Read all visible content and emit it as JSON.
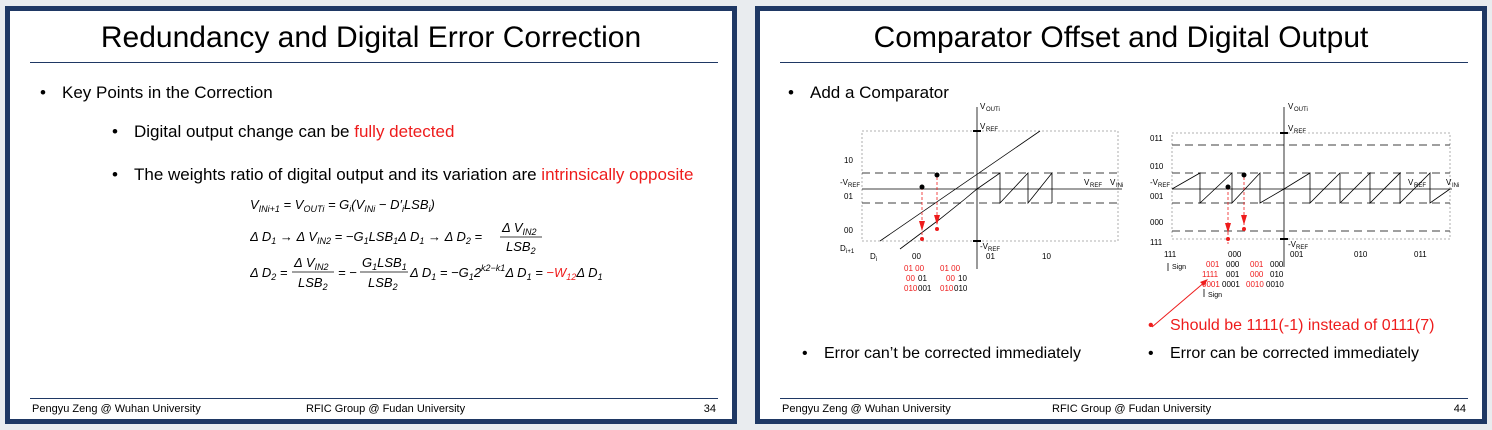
{
  "left": {
    "title": "Redundancy and Digital Error Correction",
    "bullet1": "Key Points in the Correction",
    "bullet2_plain": "Digital output change can be ",
    "bullet2_red": "fully detected",
    "bullet3_plain": "The weights ratio of digital output and its variation are ",
    "bullet3_red": "intrinsically opposite",
    "footer_left": "Pengyu Zeng @ Wuhan University",
    "footer_center": "RFIC Group @ Fudan University",
    "page_number": "34"
  },
  "right": {
    "title": "Comparator Offset and Digital Output",
    "bullet1": "Add a Comparator",
    "note_red": "Should be 1111(-1) instead of 0111(7)",
    "caption_left": "Error can’t be corrected immediately",
    "caption_right": "Error can be corrected immediately",
    "footer_left": "Pengyu Zeng @ Wuhan University",
    "footer_center": "RFIC Group @ Fudan University",
    "page_number": "44"
  },
  "plot1": {
    "vout_label": "OUTi",
    "vref_top": "REF",
    "vref_left": "-V",
    "vref_bottom": "-V",
    "vref_right": "V",
    "vin_label": "INi",
    "y_codes": [
      "10",
      "01",
      "00"
    ],
    "y_bottom_label": "D",
    "x_left_label": "D",
    "x_codes": [
      "00",
      "01",
      "10"
    ],
    "codes_row1_red": "01  00",
    "codes_row1b_red": "01  00",
    "codes_row2": [
      "00",
      "01",
      "00",
      "10"
    ],
    "codes_row3_red": "010",
    "codes_row3_black": "001",
    "codes_row3b_red": "010",
    "codes_row3b_black": "010"
  },
  "plot2": {
    "y_codes": [
      "011",
      "010",
      "001",
      "000",
      "111"
    ],
    "x_codes": [
      "111",
      "000",
      "001",
      "010",
      "011"
    ],
    "sign_label": "Sign",
    "row1": [
      "001",
      "000",
      "001",
      "000"
    ],
    "row2": [
      "1111",
      "001",
      "000",
      "010"
    ],
    "row3": [
      "0001",
      "0001",
      "0010",
      "0010"
    ]
  },
  "colors": {
    "frame": "#1f3864",
    "accent": "#ee1c1c"
  }
}
